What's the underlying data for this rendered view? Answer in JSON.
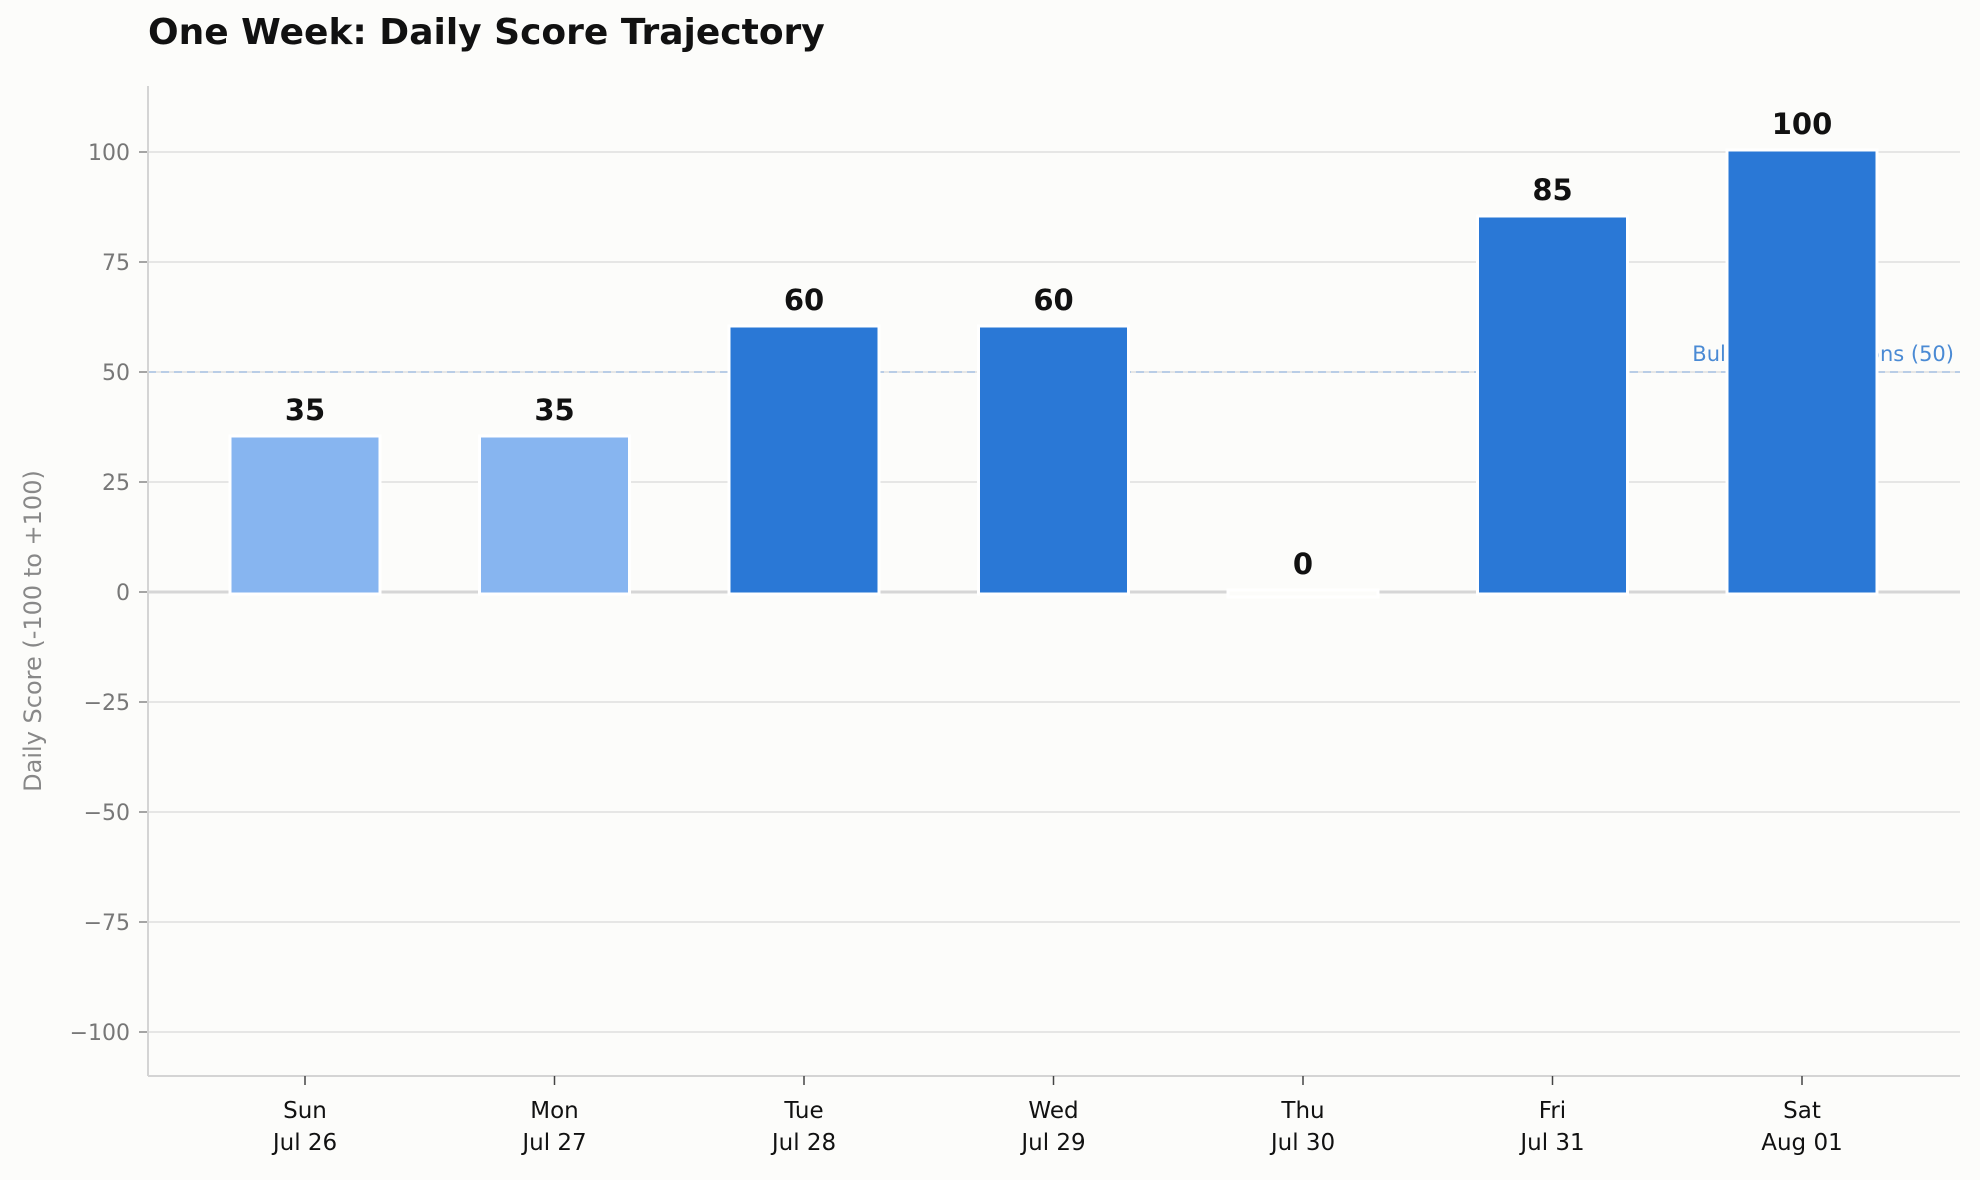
{
  "chart_data": {
    "type": "bar",
    "title": "One Week: Daily Score Trajectory",
    "ylabel": "Daily Score (-100 to +100)",
    "xlabel": "",
    "ylim": [
      -110,
      115
    ],
    "yticks": [
      100,
      75,
      50,
      25,
      0,
      -25,
      -50,
      -75,
      -100
    ],
    "ytick_labels": [
      "100",
      "75",
      "50",
      "25",
      "0",
      "−25",
      "−50",
      "−75",
      "−100"
    ],
    "categories": [
      {
        "day": "Sun",
        "date": "Jul 26"
      },
      {
        "day": "Mon",
        "date": "Jul 27"
      },
      {
        "day": "Tue",
        "date": "Jul 28"
      },
      {
        "day": "Wed",
        "date": "Jul 29"
      },
      {
        "day": "Thu",
        "date": "Jul 30"
      },
      {
        "day": "Fri",
        "date": "Jul 31"
      },
      {
        "day": "Sat",
        "date": "Aug 01"
      }
    ],
    "values": [
      35,
      35,
      60,
      60,
      0,
      85,
      100
    ],
    "value_labels": [
      "35",
      "35",
      "60",
      "60",
      "0",
      "85",
      "100"
    ],
    "bar_colors": [
      "#87b5f0",
      "#87b5f0",
      "#2a78d6",
      "#2a78d6",
      "#fcfcfa",
      "#2a78d6",
      "#2a78d6"
    ],
    "reference_line": {
      "value": 50,
      "label": "Bullish Expectations (50)",
      "color": "#4a8ad4"
    },
    "grid": true,
    "legend": "none"
  }
}
